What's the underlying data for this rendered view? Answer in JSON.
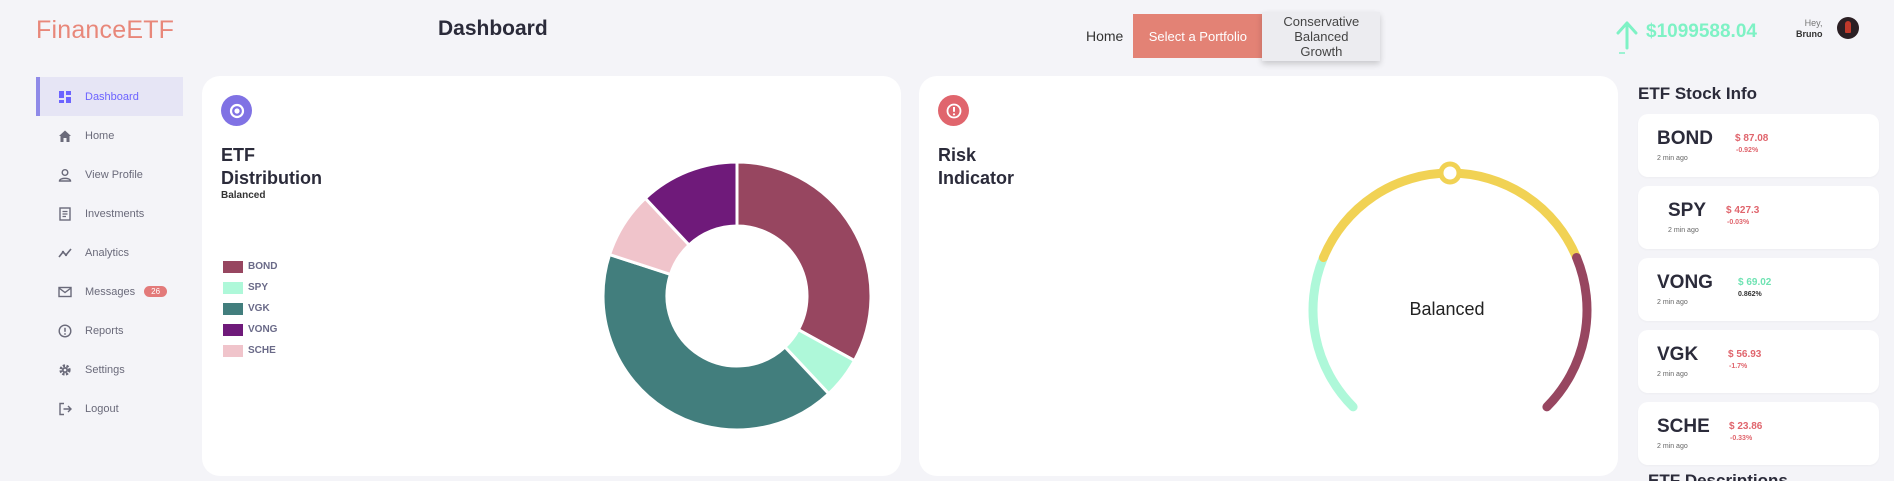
{
  "app": {
    "brand": "FinanceETF",
    "page_title": "Dashboard"
  },
  "topnav": {
    "home_label": "Home",
    "select_label": "Select a Portfolio",
    "portfolio_options": [
      "Conservative",
      "Balanced",
      "Growth"
    ]
  },
  "account": {
    "balance": "$1099588.04",
    "greeting": "Hey,",
    "user_name": "Bruno"
  },
  "sidebar": {
    "items": [
      {
        "label": "Dashboard",
        "icon": "dashboard-icon",
        "active": true
      },
      {
        "label": "Home",
        "icon": "home-icon"
      },
      {
        "label": "View Profile",
        "icon": "person-icon"
      },
      {
        "label": "Investments",
        "icon": "receipt-icon"
      },
      {
        "label": "Analytics",
        "icon": "trend-icon"
      },
      {
        "label": "Messages",
        "icon": "mail-icon",
        "badge": "26"
      },
      {
        "label": "Reports",
        "icon": "alert-circle-icon"
      },
      {
        "label": "Settings",
        "icon": "gear-icon"
      },
      {
        "label": "Logout",
        "icon": "logout-icon"
      }
    ]
  },
  "distribution": {
    "title_line1": "ETF",
    "title_line2": "Distribution",
    "subtitle": "Balanced",
    "icon": "refresh-icon",
    "legend": [
      {
        "label": "BOND",
        "color": "#974660"
      },
      {
        "label": "SPY",
        "color": "#aef8d9"
      },
      {
        "label": "VGK",
        "color": "#427e7d"
      },
      {
        "label": "VONG",
        "color": "#6f1a7a"
      },
      {
        "label": "SCHE",
        "color": "#f0c4cb"
      }
    ]
  },
  "chart_data": {
    "type": "pie",
    "variant": "donut",
    "labels": [
      "BOND",
      "SPY",
      "VGK",
      "SCHE",
      "VONG"
    ],
    "values": [
      33,
      5,
      42,
      8,
      12
    ],
    "colors": [
      "#974660",
      "#aef8d9",
      "#427e7d",
      "#f0c4cb",
      "#6f1a7a"
    ]
  },
  "risk": {
    "title_line1": "Risk",
    "title_line2": "Indicator",
    "icon": "alert-icon",
    "level_label": "Balanced",
    "level_fraction": 0.5,
    "colors": {
      "low": "#aef8d9",
      "mid": "#f1d254",
      "high": "#974660"
    }
  },
  "etf_info": {
    "title": "ETF Stock Info",
    "cards": [
      {
        "symbol": "BOND",
        "time": "2 min ago",
        "price": "$ 87.08",
        "change": "-0.92%",
        "trend": "down"
      },
      {
        "symbol": "SPY",
        "time": "2 min ago",
        "price": "$ 427.3",
        "change": "-0.03%",
        "trend": "down"
      },
      {
        "symbol": "VONG",
        "time": "2 min ago",
        "price": "$ 69.02",
        "change": "0.862%",
        "trend": "up"
      },
      {
        "symbol": "VGK",
        "time": "2 min ago",
        "price": "$ 56.93",
        "change": "-1.7%",
        "trend": "down"
      },
      {
        "symbol": "SCHE",
        "time": "2 min ago",
        "price": "$ 23.86",
        "change": "-0.33%",
        "trend": "down"
      }
    ],
    "next_section_title": "ETF Descriptions"
  }
}
